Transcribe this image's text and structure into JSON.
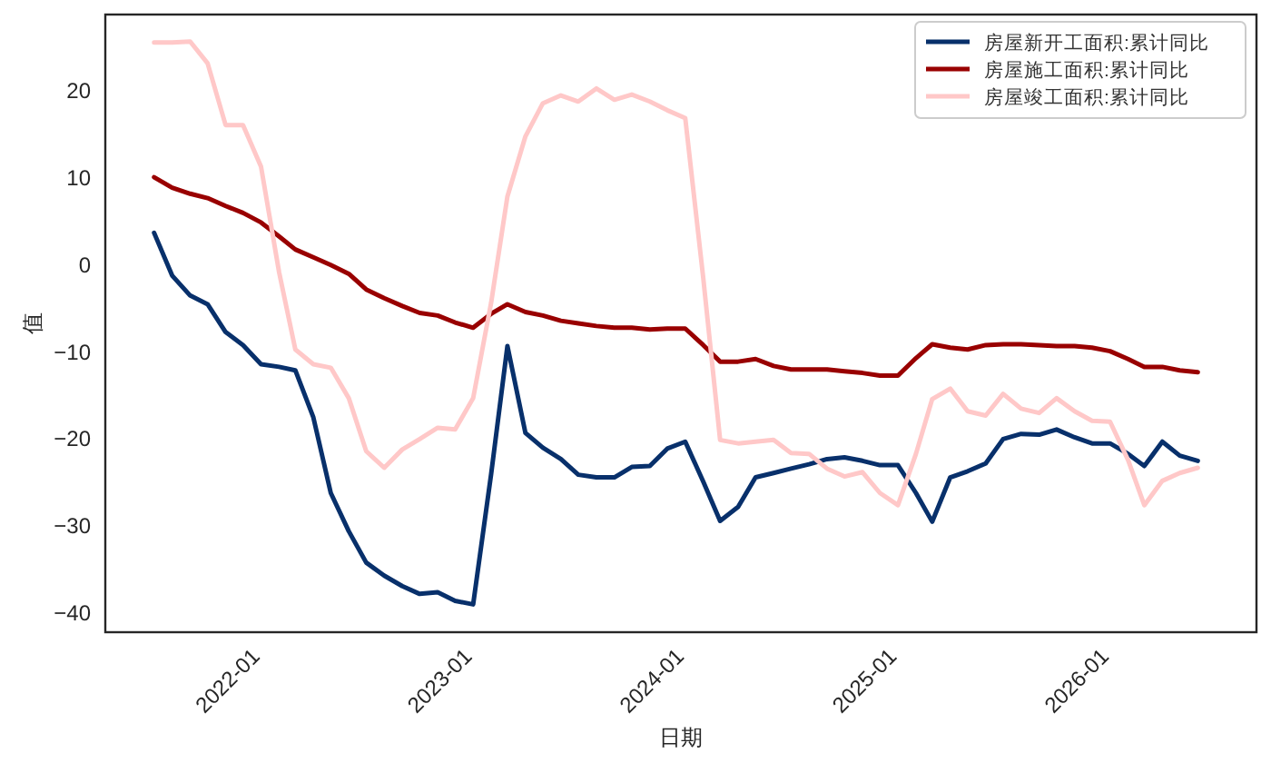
{
  "chart_data": {
    "type": "line",
    "xlabel": "日期",
    "ylabel": "值",
    "x": [
      "2021-07",
      "2021-08",
      "2021-09",
      "2021-10",
      "2021-11",
      "2021-12",
      "2022-01",
      "2022-02",
      "2022-03",
      "2022-04",
      "2022-05",
      "2022-06",
      "2022-07",
      "2022-08",
      "2022-09",
      "2022-10",
      "2022-11",
      "2022-12",
      "2023-01",
      "2023-02",
      "2023-03",
      "2023-04",
      "2023-05",
      "2023-06",
      "2023-07",
      "2023-08",
      "2023-09",
      "2023-10",
      "2023-11",
      "2023-12",
      "2024-01",
      "2024-02",
      "2024-03",
      "2024-04",
      "2024-05",
      "2024-06",
      "2024-07",
      "2024-08",
      "2024-09",
      "2024-10",
      "2024-11",
      "2024-12",
      "2025-01",
      "2025-02",
      "2025-03",
      "2025-04",
      "2025-05",
      "2025-06",
      "2025-07",
      "2025-08",
      "2025-09",
      "2025-10",
      "2025-11",
      "2025-12",
      "2026-01",
      "2026-02",
      "2026-03",
      "2026-04",
      "2026-05",
      "2026-06"
    ],
    "series": [
      {
        "name": "房屋新开工面积:累计同比",
        "color": "#08306b",
        "values": [
          3.7,
          -1.2,
          -3.5,
          -4.5,
          -7.7,
          -9.2,
          -11.4,
          -11.7,
          -12.1,
          -17.5,
          -26.2,
          -30.6,
          -34.2,
          -35.7,
          -36.9,
          -37.8,
          -37.6,
          -38.6,
          -39.0,
          -24.0,
          -9.3,
          -19.3,
          -21.0,
          -22.3,
          -24.1,
          -24.4,
          -24.4,
          -23.2,
          -23.1,
          -21.1,
          -20.3,
          -24.9,
          -29.4,
          -27.8,
          -24.4,
          -23.9,
          -23.4,
          -22.9,
          -22.3,
          -22.1,
          -22.5,
          -23.0,
          -23.0,
          -26.2,
          -29.5,
          -24.4,
          -23.7,
          -22.8,
          -20.0,
          -19.4,
          -19.5,
          -18.9,
          -19.8,
          -20.5,
          -20.5,
          -21.7,
          -23.1,
          -20.3,
          -21.9,
          -22.5
        ]
      },
      {
        "name": "房屋施工面积:累计同比",
        "color": "#990000",
        "values": [
          10.1,
          8.9,
          8.2,
          7.7,
          6.8,
          6.0,
          4.9,
          3.3,
          1.8,
          0.9,
          0.0,
          -1.0,
          -2.8,
          -3.8,
          -4.7,
          -5.5,
          -5.8,
          -6.6,
          -7.2,
          -5.6,
          -4.5,
          -5.4,
          -5.8,
          -6.4,
          -6.7,
          -7.0,
          -7.2,
          -7.2,
          -7.4,
          -7.3,
          -7.3,
          -9.2,
          -11.1,
          -11.1,
          -10.8,
          -11.6,
          -12.0,
          -12.0,
          -12.0,
          -12.2,
          -12.4,
          -12.7,
          -12.7,
          -10.7,
          -9.1,
          -9.5,
          -9.7,
          -9.2,
          -9.1,
          -9.1,
          -9.2,
          -9.3,
          -9.3,
          -9.5,
          -9.9,
          -10.8,
          -11.7,
          -11.7,
          -12.1,
          -12.3
        ]
      },
      {
        "name": "房屋竣工面积:累计同比",
        "color": "#ffc8c8",
        "values": [
          25.6,
          25.6,
          25.7,
          23.2,
          16.1,
          16.1,
          11.3,
          -0.8,
          -9.7,
          -11.4,
          -11.8,
          -15.3,
          -21.4,
          -23.3,
          -21.2,
          -20.0,
          -18.7,
          -18.9,
          -15.3,
          -4.3,
          7.9,
          14.8,
          18.6,
          19.5,
          18.8,
          20.3,
          19.0,
          19.6,
          18.8,
          17.8,
          16.9,
          -1.5,
          -20.1,
          -20.5,
          -20.3,
          -20.1,
          -21.6,
          -21.7,
          -23.4,
          -24.3,
          -23.8,
          -26.2,
          -27.6,
          -21.7,
          -15.4,
          -14.2,
          -16.8,
          -17.3,
          -14.8,
          -16.5,
          -17.0,
          -15.3,
          -16.8,
          -17.9,
          -18.0,
          -22.4,
          -27.6,
          -24.8,
          -23.9,
          -23.3
        ]
      }
    ],
    "xlim": [
      "2021-04-08",
      "2026-09-10"
    ],
    "ylim": [
      -42.2,
      28.8
    ],
    "xticks": [
      "2022-01",
      "2023-01",
      "2024-01",
      "2025-01",
      "2026-01"
    ],
    "yticks": [
      -40,
      -30,
      -20,
      -10,
      0,
      10,
      20
    ],
    "grid": false,
    "legend": "top right",
    "line_style": "solid",
    "marker": "none"
  }
}
